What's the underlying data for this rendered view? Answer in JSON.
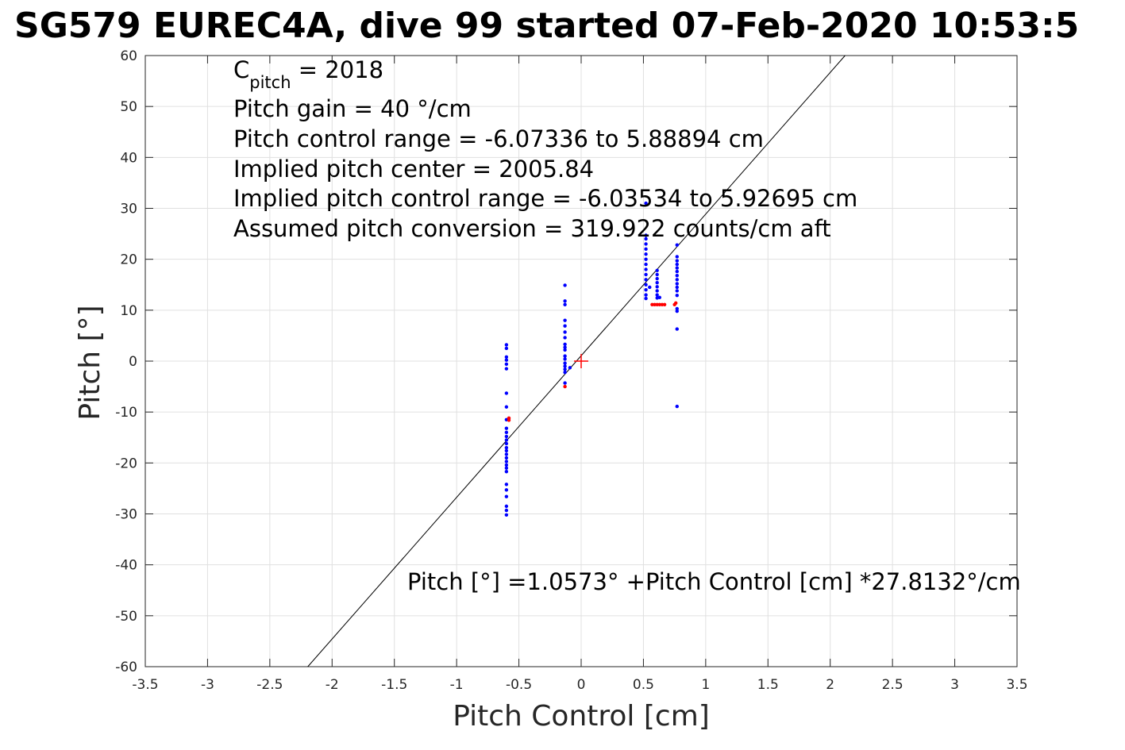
{
  "chart_data": {
    "type": "scatter",
    "title": "SG579 EUREC4A, dive 99 started 07-Feb-2020 10:53:5",
    "xlabel": "Pitch Control [cm]",
    "ylabel": "Pitch [°]",
    "xlim": [
      -3.5,
      3.5
    ],
    "ylim": [
      -60,
      60
    ],
    "xticks": [
      -3.5,
      -3,
      -2.5,
      -2,
      -1.5,
      -1,
      -0.5,
      0,
      0.5,
      1,
      1.5,
      2,
      2.5,
      3,
      3.5
    ],
    "yticks": [
      -60,
      -50,
      -40,
      -30,
      -20,
      -10,
      0,
      10,
      20,
      30,
      40,
      50,
      60
    ],
    "xtick_labels": [
      "-3.5",
      "-3",
      "-2.5",
      "-2",
      "-1.5",
      "-1",
      "-0.5",
      "0",
      "0.5",
      "1",
      "1.5",
      "2",
      "2.5",
      "3",
      "3.5"
    ],
    "ytick_labels": [
      "-60",
      "-50",
      "-40",
      "-30",
      "-20",
      "-10",
      "0",
      "10",
      "20",
      "30",
      "40",
      "50",
      "60"
    ],
    "grid": true,
    "colors": {
      "used": "#0000ff",
      "excluded": "#ff0000",
      "fit": "#000000",
      "center": "#ff0000",
      "grid": "#e0e0e0"
    },
    "series": [
      {
        "values": [
          [
            -0.6,
            3.2
          ],
          [
            -0.6,
            2.5
          ],
          [
            -0.6,
            0.8
          ],
          [
            -0.6,
            0.2
          ],
          [
            -0.6,
            -0.6
          ],
          [
            -0.6,
            -1.5
          ],
          [
            -0.6,
            -6.3
          ],
          [
            -0.6,
            -9.0
          ],
          [
            -0.6,
            -11.5
          ],
          [
            -0.6,
            -13.2
          ],
          [
            -0.6,
            -14.0
          ],
          [
            -0.6,
            -14.8
          ],
          [
            -0.6,
            -15.5
          ],
          [
            -0.6,
            -16.2
          ],
          [
            -0.6,
            -17.0
          ],
          [
            -0.6,
            -17.6
          ],
          [
            -0.6,
            -18.3
          ],
          [
            -0.6,
            -19.0
          ],
          [
            -0.6,
            -19.7
          ],
          [
            -0.6,
            -20.4
          ],
          [
            -0.6,
            -21.0
          ],
          [
            -0.6,
            -21.7
          ],
          [
            -0.6,
            -24.2
          ],
          [
            -0.6,
            -25.3
          ],
          [
            -0.6,
            -26.6
          ],
          [
            -0.6,
            -28.5
          ],
          [
            -0.6,
            -29.3
          ],
          [
            -0.6,
            -30.2
          ],
          [
            -0.13,
            14.9
          ],
          [
            -0.13,
            11.8
          ],
          [
            -0.13,
            11.1
          ],
          [
            -0.13,
            8.0
          ],
          [
            -0.13,
            6.9
          ],
          [
            -0.13,
            5.7
          ],
          [
            -0.13,
            4.6
          ],
          [
            -0.13,
            3.3
          ],
          [
            -0.13,
            2.7
          ],
          [
            -0.13,
            2.2
          ],
          [
            -0.13,
            1.0
          ],
          [
            -0.13,
            0.4
          ],
          [
            -0.13,
            -0.4
          ],
          [
            -0.13,
            -1.0
          ],
          [
            -0.13,
            -1.6
          ],
          [
            -0.13,
            -2.2
          ],
          [
            -0.13,
            -4.3
          ],
          [
            -0.09,
            -1.3
          ],
          [
            0.52,
            31.0
          ],
          [
            0.52,
            24.7
          ],
          [
            0.52,
            24.0
          ],
          [
            0.52,
            23.0
          ],
          [
            0.52,
            22.0
          ],
          [
            0.52,
            21.0
          ],
          [
            0.52,
            20.0
          ],
          [
            0.52,
            19.0
          ],
          [
            0.52,
            18.0
          ],
          [
            0.52,
            17.0
          ],
          [
            0.52,
            16.0
          ],
          [
            0.52,
            15.0
          ],
          [
            0.52,
            14.0
          ],
          [
            0.52,
            13.0
          ],
          [
            0.52,
            12.3
          ],
          [
            0.55,
            14.5
          ],
          [
            0.61,
            17.8
          ],
          [
            0.61,
            17.0
          ],
          [
            0.61,
            16.2
          ],
          [
            0.61,
            15.4
          ],
          [
            0.61,
            14.6
          ],
          [
            0.61,
            13.8
          ],
          [
            0.61,
            13.0
          ],
          [
            0.61,
            12.4
          ],
          [
            0.63,
            12.5
          ],
          [
            0.77,
            22.8
          ],
          [
            0.77,
            20.5
          ],
          [
            0.77,
            19.7
          ],
          [
            0.77,
            19.0
          ],
          [
            0.77,
            18.3
          ],
          [
            0.77,
            17.6
          ],
          [
            0.77,
            16.8
          ],
          [
            0.77,
            16.0
          ],
          [
            0.77,
            15.2
          ],
          [
            0.77,
            14.5
          ],
          [
            0.77,
            13.8
          ],
          [
            0.77,
            12.9
          ],
          [
            0.77,
            10.3
          ],
          [
            0.77,
            9.8
          ],
          [
            0.77,
            6.3
          ],
          [
            0.77,
            -8.9
          ]
        ]
      },
      {
        "values": [
          [
            -0.58,
            -11.2
          ],
          [
            -0.58,
            -11.6
          ],
          [
            -0.13,
            -5.0
          ],
          [
            0.57,
            11.1
          ],
          [
            0.59,
            11.1
          ],
          [
            0.61,
            11.1
          ],
          [
            0.63,
            11.1
          ],
          [
            0.65,
            11.1
          ],
          [
            0.67,
            11.1
          ],
          [
            0.75,
            11.1
          ],
          [
            0.76,
            11.4
          ]
        ]
      }
    ],
    "fit": {
      "intercept": 1.0573,
      "slope": 27.8132
    },
    "center_marker": [
      0,
      0
    ],
    "annotations": {
      "cpitch_main": "C",
      "cpitch_sub": "pitch",
      "cpitch_value": " = 2018",
      "pitch_gain": "Pitch gain = 40 °/cm",
      "pitch_control_range": "Pitch control range = -6.07336 to 5.88894 cm",
      "implied_center": "Implied pitch center = 2005.84",
      "implied_range": "Implied pitch control range = -6.03534 to 5.92695 cm",
      "assumed_conversion": "Assumed pitch conversion = 319.922 counts/cm aft",
      "fit_equation": "Pitch [°] =1.0573° +Pitch Control [cm] *27.8132°/cm"
    }
  }
}
